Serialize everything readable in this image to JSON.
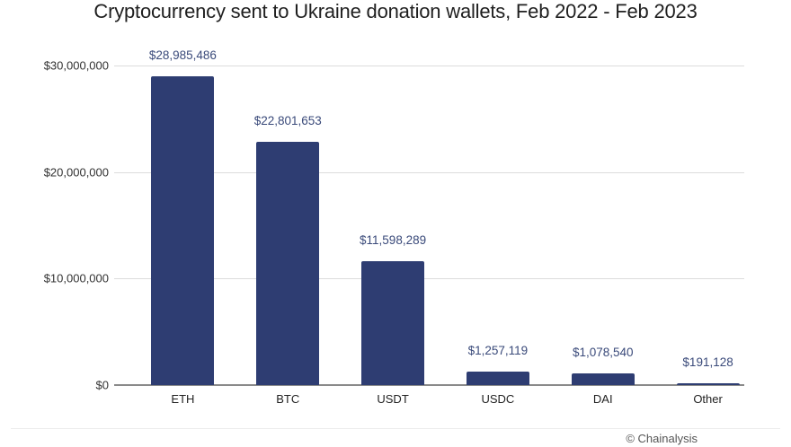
{
  "chart_data": {
    "type": "bar",
    "title": "Cryptocurrency sent to Ukraine donation wallets, Feb 2022 - Feb 2023",
    "categories": [
      "ETH",
      "BTC",
      "USDT",
      "USDC",
      "DAI",
      "Other"
    ],
    "values": [
      28985486,
      22801653,
      11598289,
      1257119,
      1078540,
      191128
    ],
    "data_labels": [
      "$28,985,486",
      "$22,801,653",
      "$11,598,289",
      "$1,257,119",
      "$1,078,540",
      "$191,128"
    ],
    "xlabel": "",
    "ylabel": "",
    "ylim": [
      0,
      30000000
    ],
    "yticks": [
      0,
      10000000,
      20000000,
      30000000
    ],
    "ytick_labels": [
      "$0",
      "$10,000,000",
      "$20,000,000",
      "$30,000,000"
    ],
    "grid": true,
    "legend": null,
    "bar_color": "#2e3d72",
    "label_color": "#3a4a7a"
  },
  "credit": "© Chainalysis"
}
